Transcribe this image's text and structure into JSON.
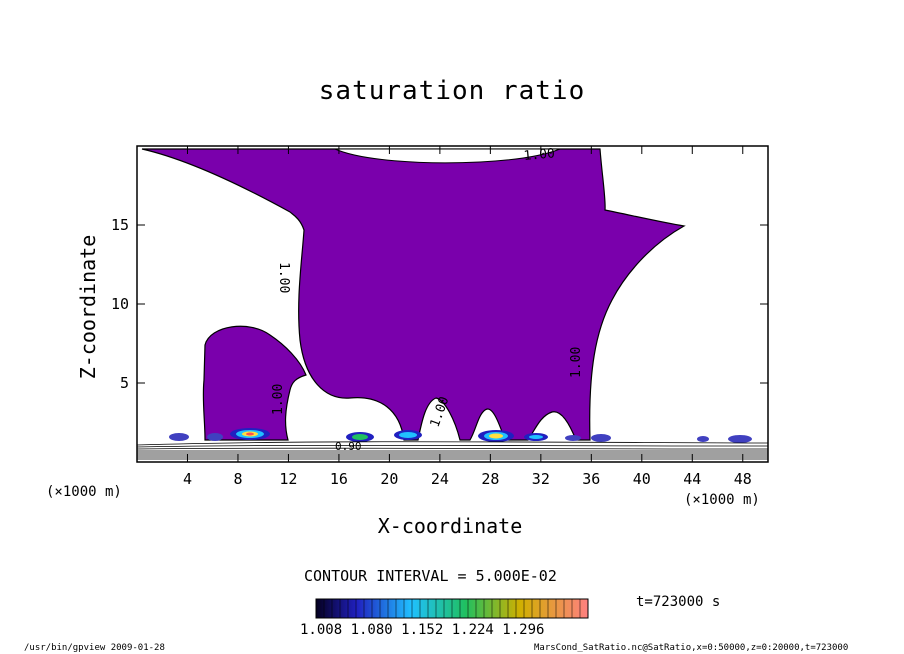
{
  "chart_data": {
    "type": "contour",
    "title": "saturation ratio",
    "xlabel": "X-coordinate",
    "ylabel": "Z-coordinate",
    "x_unit_label": "(×1000 m)",
    "x_ticks": [
      "4",
      "8",
      "12",
      "16",
      "20",
      "24",
      "28",
      "32",
      "36",
      "40",
      "44",
      "48"
    ],
    "y_ticks": [
      "5",
      "10",
      "15"
    ],
    "xlim": [
      0,
      50
    ],
    "ylim": [
      0,
      20
    ],
    "contour_label": "1.00",
    "contour_labels_near_surface": "0.90",
    "contour_interval": "CONTOUR INTERVAL = 5.000E-02",
    "time_label": "t=723000 s",
    "colorbar": {
      "labels": [
        "1.008",
        "1.080",
        "1.152",
        "1.224",
        "1.296"
      ],
      "min": 1.008,
      "max": 1.296
    },
    "colors": {
      "saturated_region": "#7a00ac",
      "background": "#ffffff"
    }
  },
  "footer": {
    "left": "/usr/bin/gpview  2009-01-28",
    "right": "MarsCond_SatRatio.nc@SatRatio,x=0:50000,z=0:20000,t=723000"
  }
}
